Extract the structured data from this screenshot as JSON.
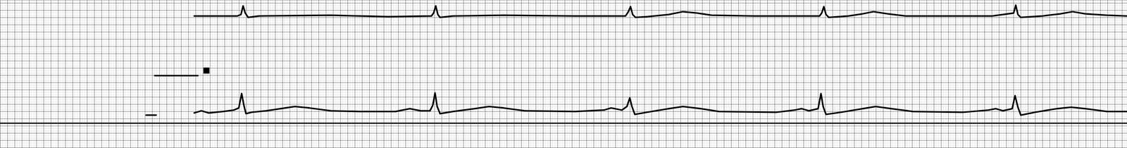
{
  "chart_data": {
    "type": "line",
    "tick_labels": false,
    "xlim": [
      0,
      1568
    ],
    "ylim": [
      0,
      206
    ],
    "series": [
      {
        "color": "#000000",
        "x": [
          270,
          330,
          335,
          338,
          341,
          345,
          360,
          460,
          540,
          600,
          603,
          606,
          609,
          612,
          630,
          700,
          800,
          870,
          874,
          877,
          880,
          884,
          900,
          930,
          950,
          970,
          990,
          1050,
          1140,
          1143,
          1146,
          1149,
          1153,
          1180,
          1200,
          1215,
          1235,
          1260,
          1380,
          1410,
          1413,
          1416,
          1420,
          1450,
          1475,
          1492,
          1510,
          1540,
          1568
        ],
        "values": [
          184,
          184,
          186,
          198,
          188,
          182,
          184,
          185,
          183,
          184,
          188,
          198,
          186,
          182,
          184,
          185,
          184,
          184,
          190,
          197,
          186,
          182,
          183,
          186,
          190,
          188,
          185,
          184,
          184,
          188,
          197,
          186,
          182,
          184,
          187,
          190,
          187,
          184,
          184,
          188,
          199,
          186,
          182,
          184,
          187,
          190,
          187,
          185,
          184
        ]
      },
      {
        "color": "#000000",
        "x": [
          270,
          280,
          290,
          310,
          325,
          332,
          336,
          339,
          342,
          350,
          370,
          390,
          410,
          430,
          460,
          500,
          550,
          570,
          585,
          598,
          602,
          605,
          608,
          612,
          630,
          660,
          680,
          700,
          730,
          800,
          840,
          850,
          865,
          872,
          876,
          879,
          883,
          900,
          930,
          950,
          975,
          1000,
          1080,
          1105,
          1115,
          1125,
          1138,
          1142,
          1145,
          1149,
          1170,
          1200,
          1218,
          1240,
          1270,
          1340,
          1375,
          1385,
          1395,
          1408,
          1412,
          1416,
          1420,
          1440,
          1470,
          1490,
          1510,
          1540,
          1568
        ],
        "values": [
          49,
          52,
          49,
          51,
          53,
          56,
          76,
          60,
          48,
          50,
          52,
          55,
          58,
          56,
          52,
          51,
          51,
          55,
          52,
          52,
          60,
          77,
          58,
          48,
          51,
          55,
          58,
          56,
          52,
          51,
          53,
          56,
          53,
          58,
          70,
          58,
          47,
          50,
          55,
          58,
          55,
          51,
          50,
          53,
          55,
          52,
          55,
          76,
          58,
          47,
          50,
          55,
          58,
          55,
          51,
          50,
          53,
          55,
          52,
          55,
          73,
          57,
          46,
          50,
          55,
          57,
          55,
          51,
          51
        ]
      },
      {
        "color": "#000000",
        "x": [
          215,
          275
        ],
        "values": [
          101,
          101
        ]
      },
      {
        "color": "#000000",
        "x": [
          203,
          217
        ],
        "values": [
          46,
          46
        ]
      },
      {
        "color": "#000000",
        "type": "scatter",
        "marker": "square",
        "x": [
          287
        ],
        "values": [
          108
        ]
      }
    ]
  }
}
